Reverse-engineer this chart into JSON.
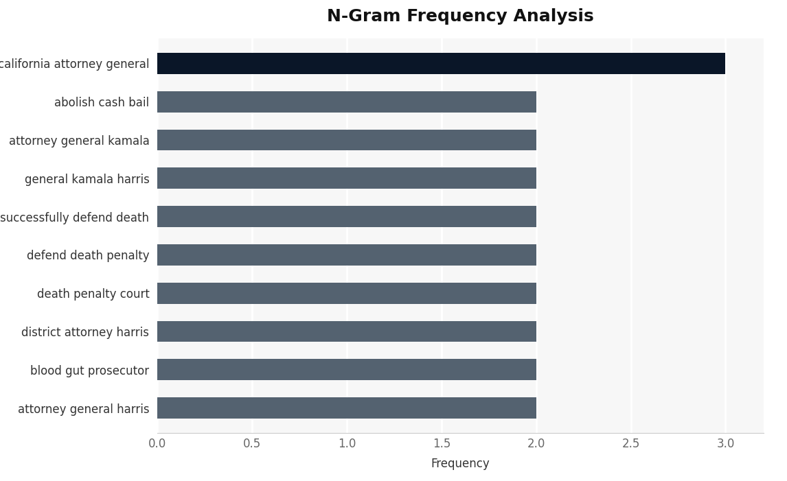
{
  "title": "N-Gram Frequency Analysis",
  "xlabel": "Frequency",
  "categories": [
    "attorney general harris",
    "blood gut prosecutor",
    "district attorney harris",
    "death penalty court",
    "defend death penalty",
    "successfully defend death",
    "general kamala harris",
    "attorney general kamala",
    "abolish cash bail",
    "california attorney general"
  ],
  "values": [
    2,
    2,
    2,
    2,
    2,
    2,
    2,
    2,
    2,
    3
  ],
  "bar_colors": [
    "#546270",
    "#546270",
    "#546270",
    "#546270",
    "#546270",
    "#546270",
    "#546270",
    "#546270",
    "#546270",
    "#0a1628"
  ],
  "fig_background_color": "#ffffff",
  "plot_background_color": "#f7f7f7",
  "title_fontsize": 18,
  "label_fontsize": 12,
  "tick_fontsize": 12,
  "xlim": [
    0,
    3.2
  ],
  "xticks": [
    0.0,
    0.5,
    1.0,
    1.5,
    2.0,
    2.5,
    3.0
  ],
  "bar_height": 0.55
}
